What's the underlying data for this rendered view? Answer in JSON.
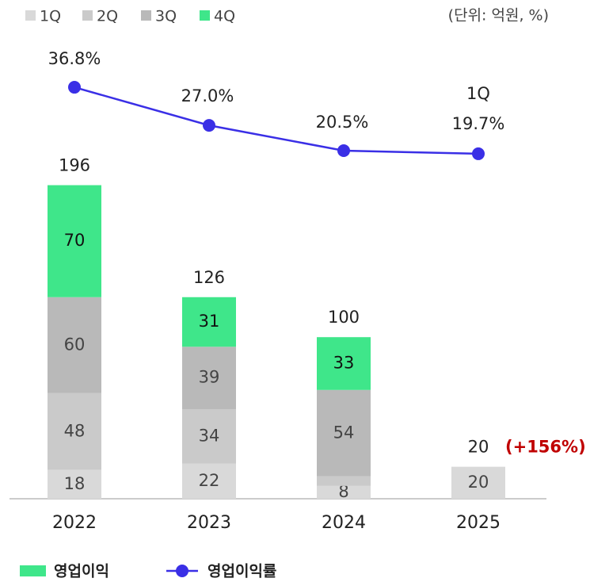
{
  "chart_data": {
    "type": "bar",
    "stacked": true,
    "unit_note": "(단위: 억원, %)",
    "categories": [
      "2022",
      "2023",
      "2024",
      "2025"
    ],
    "series": [
      {
        "name": "1Q",
        "color": "#d9d9d9",
        "values": [
          18,
          22,
          8,
          20
        ]
      },
      {
        "name": "2Q",
        "color": "#cacaca",
        "values": [
          48,
          34,
          6,
          null
        ]
      },
      {
        "name": "3Q",
        "color": "#b9b9b9",
        "values": [
          60,
          39,
          54,
          null
        ]
      },
      {
        "name": "4Q",
        "color": "#3fe68a",
        "values": [
          70,
          31,
          33,
          null
        ]
      },
      {
        "name": "영업이익률",
        "type": "line",
        "axis": "y2",
        "color": "#3a2fe6",
        "values": [
          36.8,
          27.0,
          20.5,
          19.7
        ],
        "value_labels": [
          "36.8%",
          "27.0%",
          "20.5%",
          "19.7%"
        ]
      }
    ],
    "totals": [
      196,
      126,
      100,
      20
    ],
    "bar_legend": "영업이익",
    "annotations": [
      "1Q",
      "(+156%)"
    ],
    "ylim": [
      0,
      282
    ],
    "y2lim": [
      -69,
      47
    ]
  }
}
